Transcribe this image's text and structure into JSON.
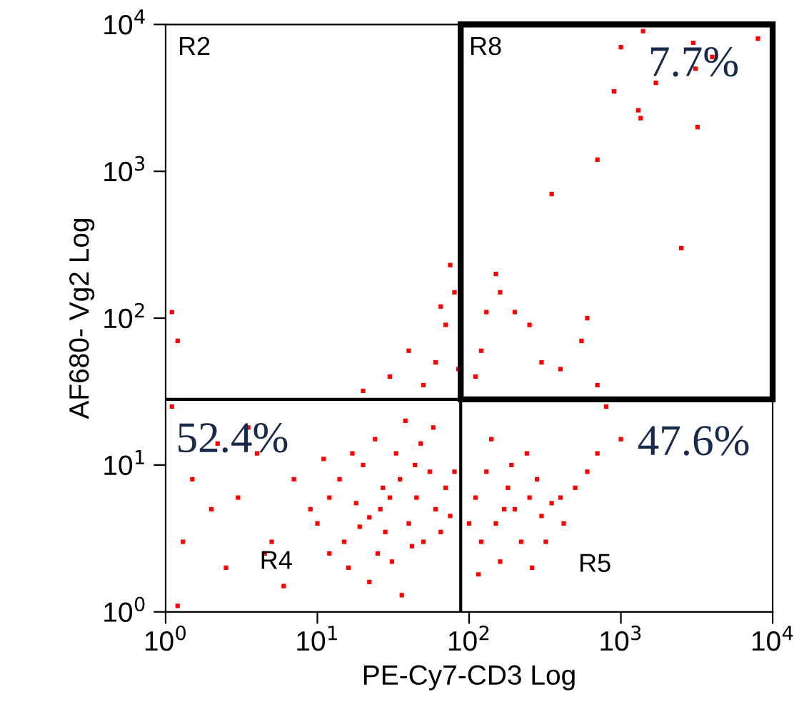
{
  "chart_data": {
    "type": "scatter",
    "xlabel": "PE-Cy7-CD3 Log",
    "ylabel": "AF680- Vg2 Log",
    "log": "xy",
    "grid": false,
    "legend": false,
    "marker": "square",
    "xlim": [
      1,
      10000
    ],
    "ylim": [
      1,
      10000
    ],
    "xticks": [
      {
        "value": 1,
        "label": "10$^{0}$"
      },
      {
        "value": 10,
        "label": "10$^{1}$"
      },
      {
        "value": 100,
        "label": "10$^{2}$"
      },
      {
        "value": 1000,
        "label": "10$^{3}$"
      },
      {
        "value": 10000,
        "label": "10$^{4}$"
      }
    ],
    "yticks": [
      {
        "value": 1,
        "label": "10$^{0}$"
      },
      {
        "value": 10,
        "label": "10$^{1}$"
      },
      {
        "value": 100,
        "label": "10$^{2}$"
      },
      {
        "value": 1000,
        "label": "10$^{3}$"
      },
      {
        "value": 10000,
        "label": "10$^{4}$"
      }
    ],
    "ref_lines": [
      {
        "axis": "x",
        "value": 88,
        "color": "#000000"
      },
      {
        "axis": "y",
        "value": 28,
        "color": "#000000"
      }
    ],
    "annotations": [
      "R2",
      "R8",
      "R4",
      "R5",
      "52.4%",
      "47.6%",
      "7.7%"
    ],
    "series": [
      {
        "color": "#ff0000",
        "x": [
          22,
          15,
          30,
          18,
          25,
          40,
          12,
          35,
          20,
          28,
          45,
          60,
          50,
          16,
          10,
          70,
          55,
          33,
          24,
          38,
          14,
          19,
          26,
          31,
          42,
          65,
          75,
          80,
          48,
          58,
          22,
          36,
          12,
          9,
          11,
          27,
          44,
          17,
          200,
          150,
          250,
          120,
          300,
          180,
          350,
          110,
          130,
          220,
          280,
          400,
          160,
          100,
          240,
          320,
          500,
          140,
          190,
          260,
          420,
          115,
          170,
          600,
          1.1,
          1.5,
          2,
          1.3,
          2.5,
          3,
          4,
          5,
          6,
          3.5,
          1.2,
          7,
          2.2,
          4.5,
          1.1,
          1.2,
          60,
          70,
          40,
          80,
          75,
          50,
          30,
          85,
          65,
          20,
          1000,
          1400,
          3000,
          3100,
          1700,
          4000,
          900,
          1300,
          700,
          350,
          150,
          160,
          130,
          200,
          250,
          600,
          550,
          300,
          110,
          700,
          2500,
          8000,
          3200,
          1350,
          120,
          400,
          800,
          1000,
          700
        ],
        "values": [
          4.4,
          3,
          6,
          5.5,
          2.5,
          4,
          6,
          8,
          10,
          3.5,
          6,
          5,
          3,
          2,
          4,
          7,
          9,
          12,
          15,
          20,
          8,
          3.8,
          5,
          2.2,
          2.8,
          3.5,
          4.5,
          9,
          14,
          18,
          1.6,
          1.3,
          2.5,
          5,
          11,
          7,
          10,
          12,
          5,
          4,
          6,
          3,
          4.5,
          7,
          5.5,
          6,
          9,
          3,
          8,
          6,
          2.2,
          4,
          12,
          3,
          7,
          15,
          10,
          2,
          4,
          1.8,
          5,
          9,
          25,
          8,
          5,
          3,
          2,
          6,
          12,
          3,
          1.5,
          18,
          1.1,
          8,
          14,
          2.5,
          110,
          70,
          50,
          90,
          60,
          150,
          230,
          35,
          40,
          45,
          120,
          32,
          7000,
          9000,
          7500,
          5000,
          4000,
          6000,
          3500,
          2600,
          1200,
          700,
          200,
          150,
          110,
          110,
          90,
          100,
          70,
          50,
          40,
          35,
          300,
          8000,
          2000,
          2300,
          60,
          45,
          25,
          15,
          12
        ]
      }
    ]
  }
}
